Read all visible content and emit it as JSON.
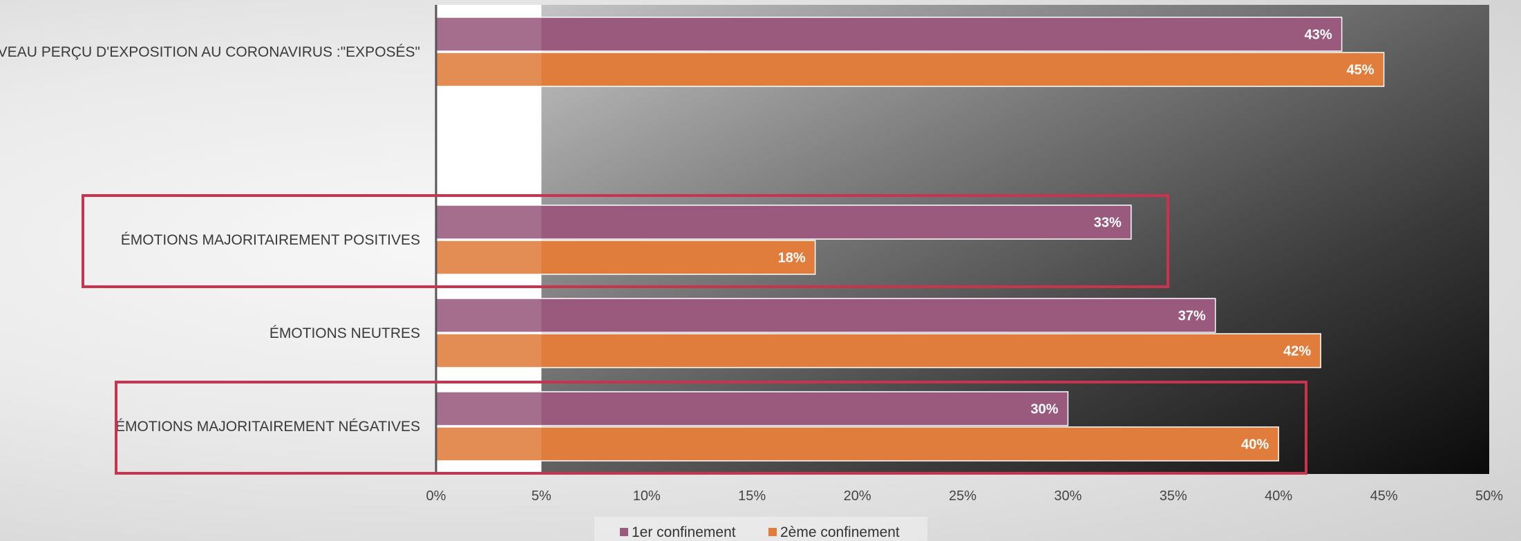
{
  "chart_data": {
    "type": "bar",
    "orientation": "horizontal",
    "categories": [
      "NIVEAU PERÇU D'EXPOSITION AU CORONAVIRUS :\"EXPOSÉS\"",
      "",
      "ÉMOTIONS MAJORITAIREMENT POSITIVES",
      "ÉMOTIONS NEUTRES",
      "ÉMOTIONS MAJORITAIREMENT NÉGATIVES"
    ],
    "series": [
      {
        "name": "1er confinement",
        "values": [
          43,
          null,
          33,
          37,
          30
        ],
        "labels": [
          "43%",
          "",
          "33%",
          "37%",
          "30%"
        ],
        "color": "#9a5a7e"
      },
      {
        "name": "2ème confinement",
        "values": [
          45,
          null,
          18,
          42,
          40
        ],
        "labels": [
          "45%",
          "",
          "18%",
          "42%",
          "40%"
        ],
        "color": "#e07d3c"
      }
    ],
    "xlim": [
      0,
      50
    ],
    "x_ticks": [
      0,
      5,
      10,
      15,
      20,
      25,
      30,
      35,
      40,
      45,
      50
    ],
    "x_tick_labels": [
      "0%",
      "5%",
      "10%",
      "15%",
      "20%",
      "25%",
      "30%",
      "35%",
      "40%",
      "45%",
      "50%"
    ],
    "highlighted_categories": [
      2,
      4
    ],
    "highlight_color": "#c8334f",
    "legend_position": "bottom",
    "grid": false
  }
}
